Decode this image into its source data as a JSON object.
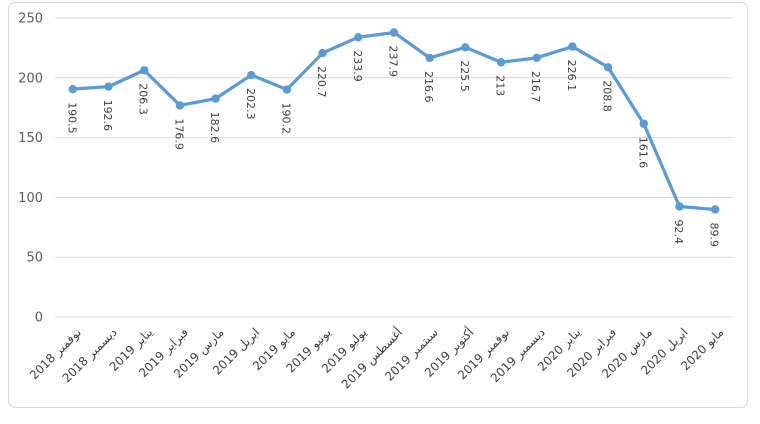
{
  "chart_data": {
    "type": "line",
    "title": "",
    "xlabel": "",
    "ylabel": "",
    "legend": "none",
    "grid": true,
    "categories": [
      "نوفمبر 2018",
      "ديسمبر 2018",
      "يناير 2019",
      "فبراير 2019",
      "مارس 2019",
      "ابريل 2019",
      "مايو 2019",
      "يونيو 2019",
      "يوليو 2019",
      "أغسطس 2019",
      "سبتمبر 2019",
      "أكتوبر 2019",
      "نوفمبر 2019",
      "ديسمبر 2019",
      "يناير 2020",
      "فبراير 2020",
      "مارس 2020",
      "ابريل 2020",
      "مايو 2020"
    ],
    "values": [
      190.5,
      192.6,
      206.3,
      176.9,
      182.6,
      202.3,
      190.2,
      220.7,
      233.9,
      237.9,
      216.6,
      225.5,
      213,
      216.7,
      226.1,
      208.8,
      161.6,
      92.4,
      89.9
    ],
    "data_labels": [
      "190.5",
      "192.6",
      "206.3",
      "176.9",
      "182.6",
      "202.3",
      "190.2",
      "220.7",
      "233.9",
      "237.9",
      "216.6",
      "225.5",
      "213",
      "216.7",
      "226.1",
      "208.8",
      "161.6",
      "92.4",
      "89.9"
    ],
    "data_labels_shown": true,
    "data_label_rotation_deg": 90,
    "category_label_rotation_deg": -45,
    "y_ticks": [
      "0",
      "50",
      "100",
      "150",
      "200",
      "250"
    ],
    "ylim": [
      0,
      250
    ],
    "marker": "circle",
    "colors": {
      "line": "#5B9BD5",
      "marker": "#5B9BD5",
      "gridline": "#D9D9D9",
      "chart_border": "#D9D9D9",
      "y_tick_label": "#595959",
      "category_label": "#404040",
      "data_label": "#404040",
      "background": "#FFFFFF"
    }
  }
}
